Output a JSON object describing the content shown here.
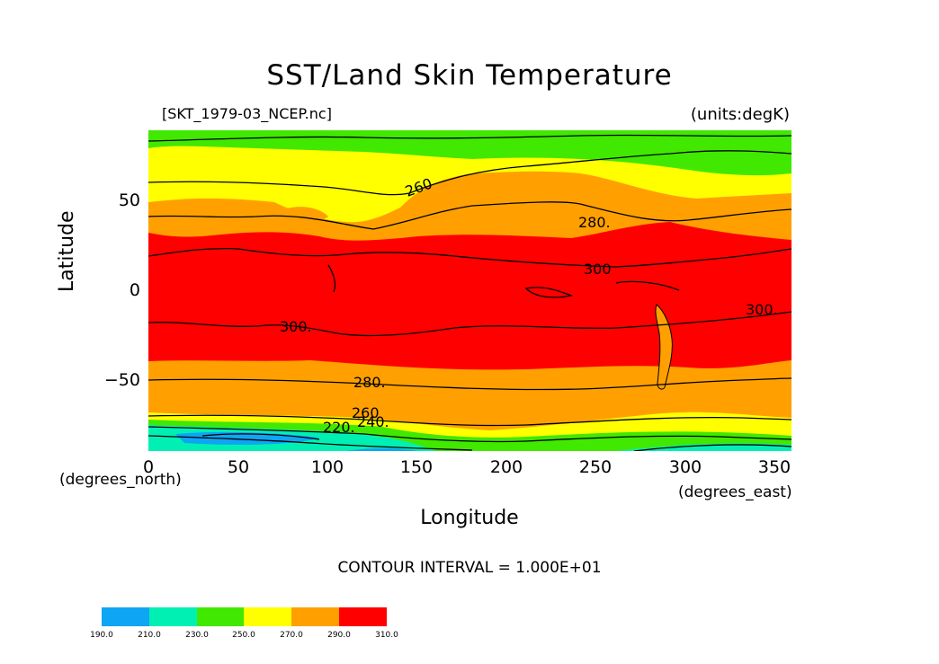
{
  "map": {
    "title": "SST/Land Skin Temperature",
    "file_label": "[SKT_1979-03_NCEP.nc]",
    "units_label": "(units:degK)",
    "y_axis_label": "Latitude",
    "x_axis_label": "Longitude",
    "lat_unit_label": "(degrees_north)",
    "lon_unit_label": "(degrees_east)",
    "contour_note": "CONTOUR INTERVAL = 1.000E+01",
    "x_ticks": [
      "0",
      "50",
      "100",
      "150",
      "200",
      "250",
      "300",
      "350"
    ],
    "y_ticks": [
      "50",
      "0",
      "−50"
    ],
    "contour_labels": [
      "260",
      "280.",
      "300",
      "300.",
      "300.",
      "280.",
      "260",
      "220.",
      "240."
    ],
    "colorbar": {
      "labels": [
        "190.0",
        "210.0",
        "230.0",
        "250.0",
        "270.0",
        "290.0",
        "310.0"
      ],
      "colors": [
        "#0ea5f4",
        "#00f0b4",
        "#41e800",
        "#ffff00",
        "#ffa000",
        "#ff0000"
      ]
    },
    "colors": {
      "cold": "#0ea5f4",
      "cool": "#00f0b4",
      "green": "#41e800",
      "yellow": "#ffff00",
      "orange": "#ffa000",
      "red": "#ff0000"
    }
  }
}
